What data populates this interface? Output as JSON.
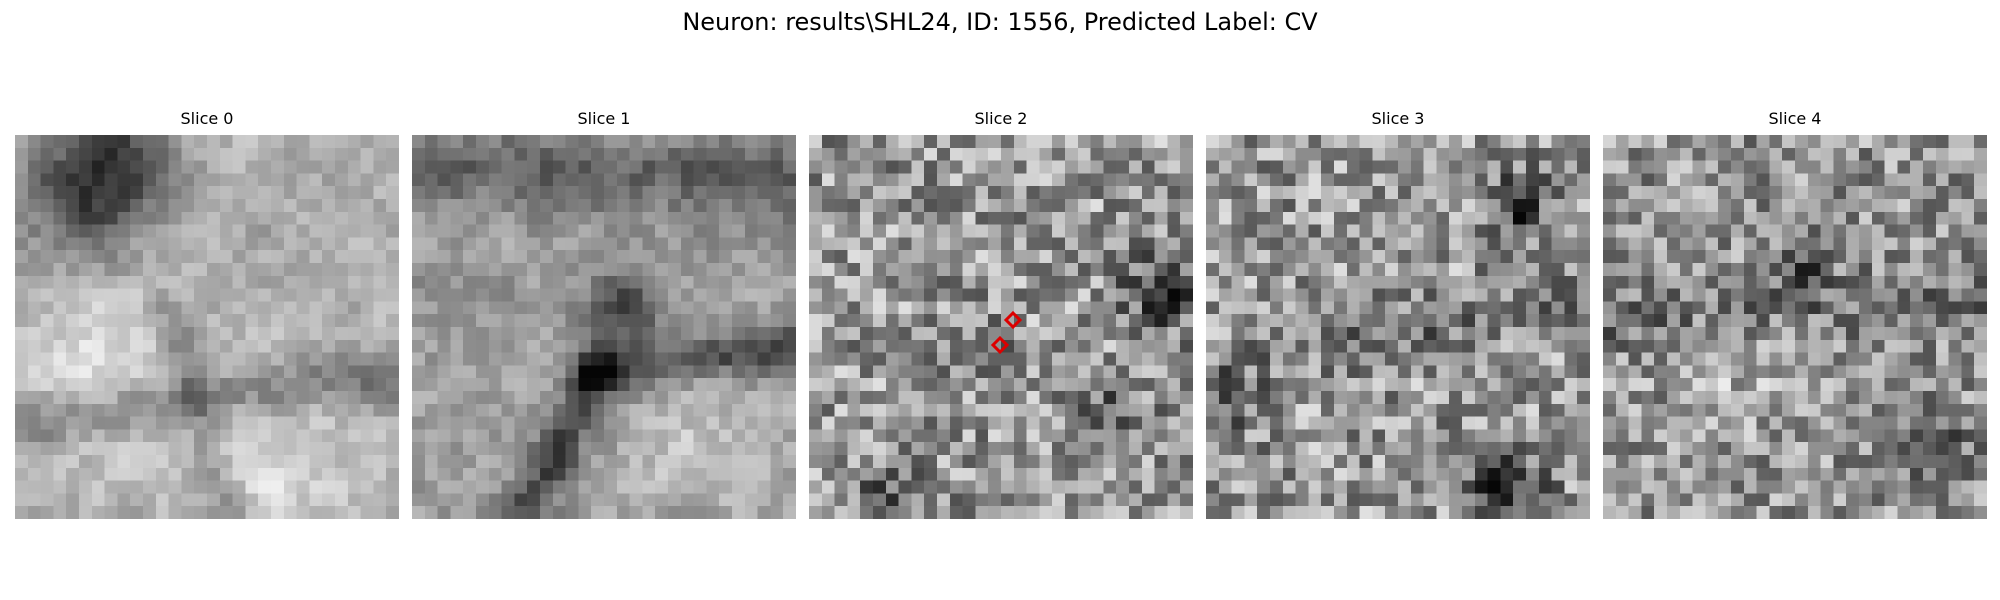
{
  "figure": {
    "title": "Neuron: results\\SHL24, ID: 1556, Predicted Label: CV",
    "colormap": "gray",
    "grid_size": 30
  },
  "slices": [
    {
      "title": "Slice 0"
    },
    {
      "title": "Slice 1"
    },
    {
      "title": "Slice 2"
    },
    {
      "title": "Slice 3"
    },
    {
      "title": "Slice 4"
    }
  ],
  "markers": {
    "color": "#dd0000",
    "shape": "diamond-outline"
  }
}
